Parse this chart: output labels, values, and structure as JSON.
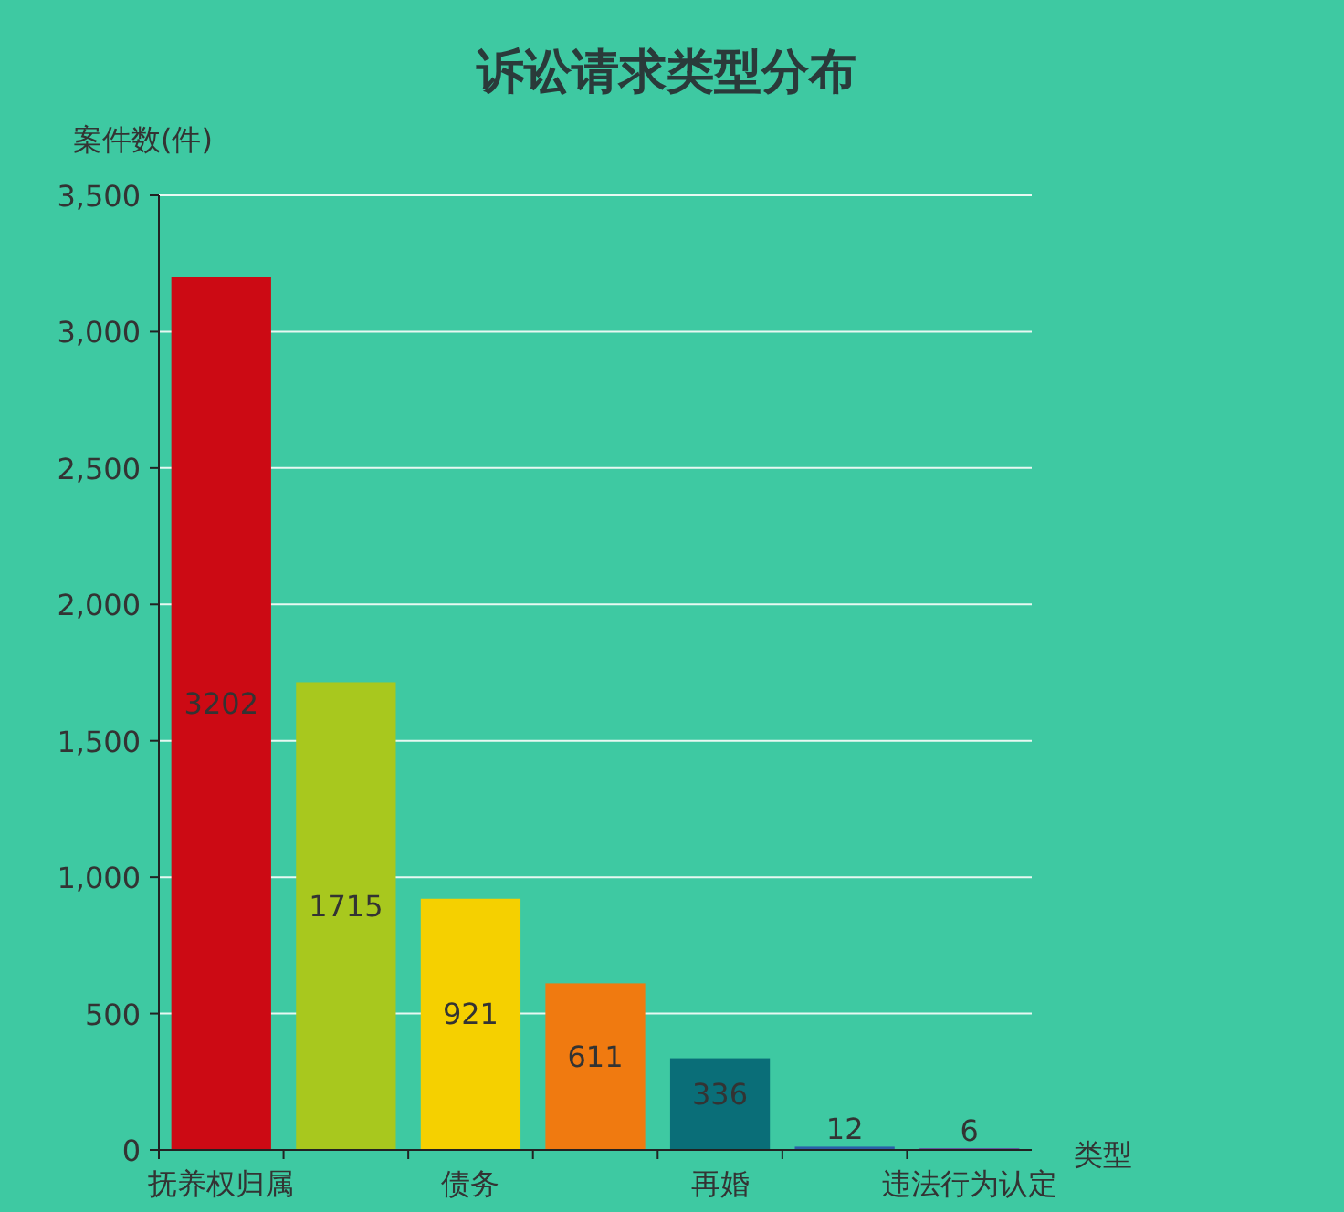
{
  "chart_data": {
    "type": "bar",
    "title": "诉讼请求类型分布",
    "ylabel": "案件数(件)",
    "xlabel": "类型",
    "categories": [
      "抚养权归属",
      null,
      "债务",
      null,
      "再婚",
      null,
      "违法行为认定"
    ],
    "values": [
      3202,
      1715,
      921,
      611,
      336,
      12,
      6
    ],
    "colors": [
      "#cc0a14",
      "#a8c81e",
      "#f5d000",
      "#f07a10",
      "#0a6e78",
      "#2a5fa8",
      "#6a3fa0"
    ],
    "ylim": [
      0,
      3500
    ],
    "yticks": [
      {
        "value": 0,
        "label": "0"
      },
      {
        "value": 500,
        "label": "500"
      },
      {
        "value": 1000,
        "label": "1,000"
      },
      {
        "value": 1500,
        "label": "1,500"
      },
      {
        "value": 2000,
        "label": "2,000"
      },
      {
        "value": 2500,
        "label": "2,500"
      },
      {
        "value": 3000,
        "label": "3,000"
      },
      {
        "value": 3500,
        "label": "3,500"
      }
    ],
    "grid": "y",
    "data_labels": true
  }
}
